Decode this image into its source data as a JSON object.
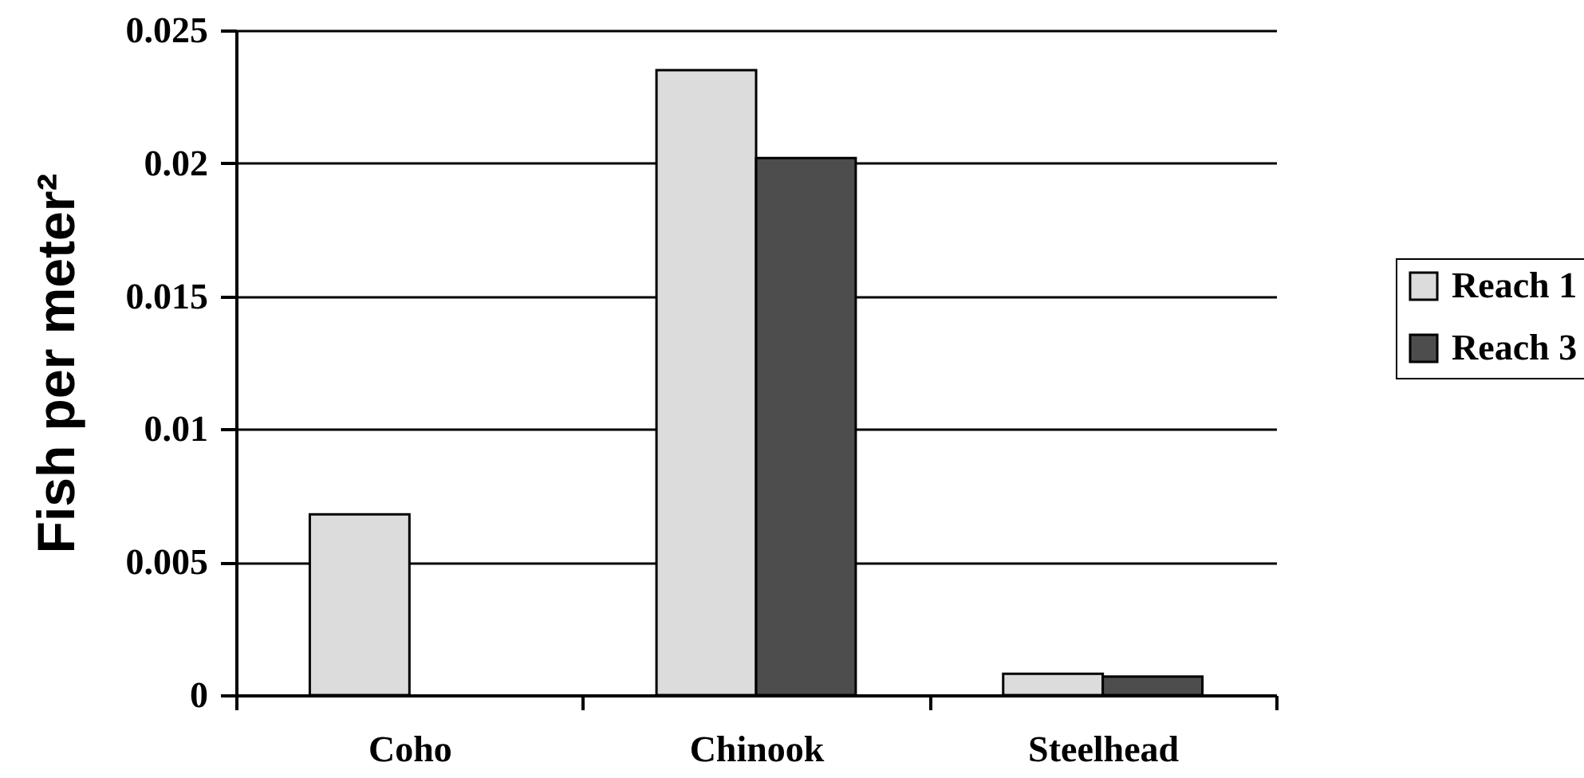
{
  "chart_data": {
    "type": "bar",
    "ylabel": "Fish per meter²",
    "categories": [
      "Coho",
      "Chinook",
      "Steelhead"
    ],
    "series": [
      {
        "name": "Reach 1",
        "color": "#dcdcdc",
        "values": [
          0.0068,
          0.0235,
          0.0008
        ]
      },
      {
        "name": "Reach 3",
        "color": "#4d4d4d",
        "values": [
          null,
          0.0202,
          0.0007
        ]
      }
    ],
    "ylim": [
      0,
      0.025
    ],
    "yticks": [
      0,
      0.005,
      0.01,
      0.015,
      0.02,
      0.025
    ],
    "grid": "y",
    "legend": "right"
  }
}
